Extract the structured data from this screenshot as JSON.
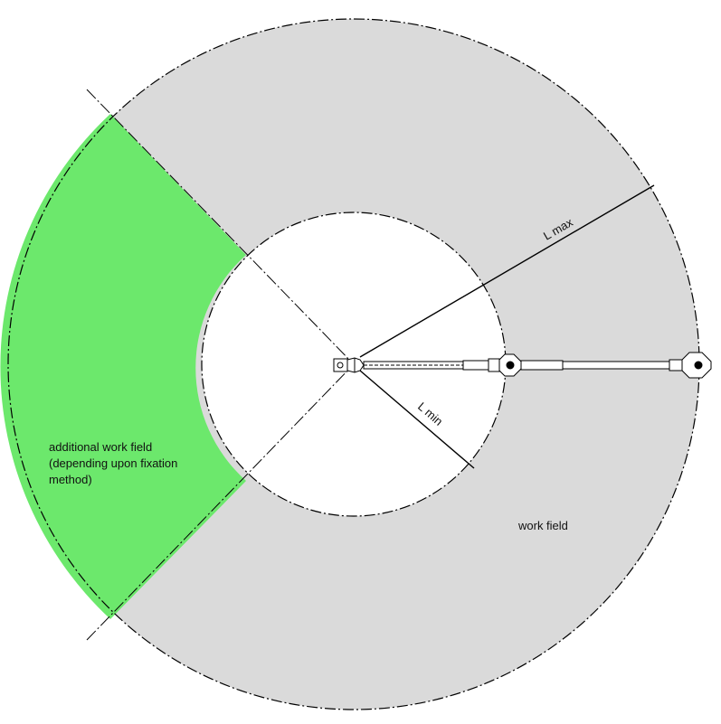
{
  "labels": {
    "l_max": "L max",
    "l_min": "L min",
    "work_field": "work field",
    "additional_line1": "additional work field",
    "additional_line2": "(depending upon fixation",
    "additional_line3": "method)"
  },
  "colors": {
    "work_field": "#dadada",
    "additional_field": "#6ce86c",
    "line": "#000000",
    "background": "#ffffff"
  }
}
